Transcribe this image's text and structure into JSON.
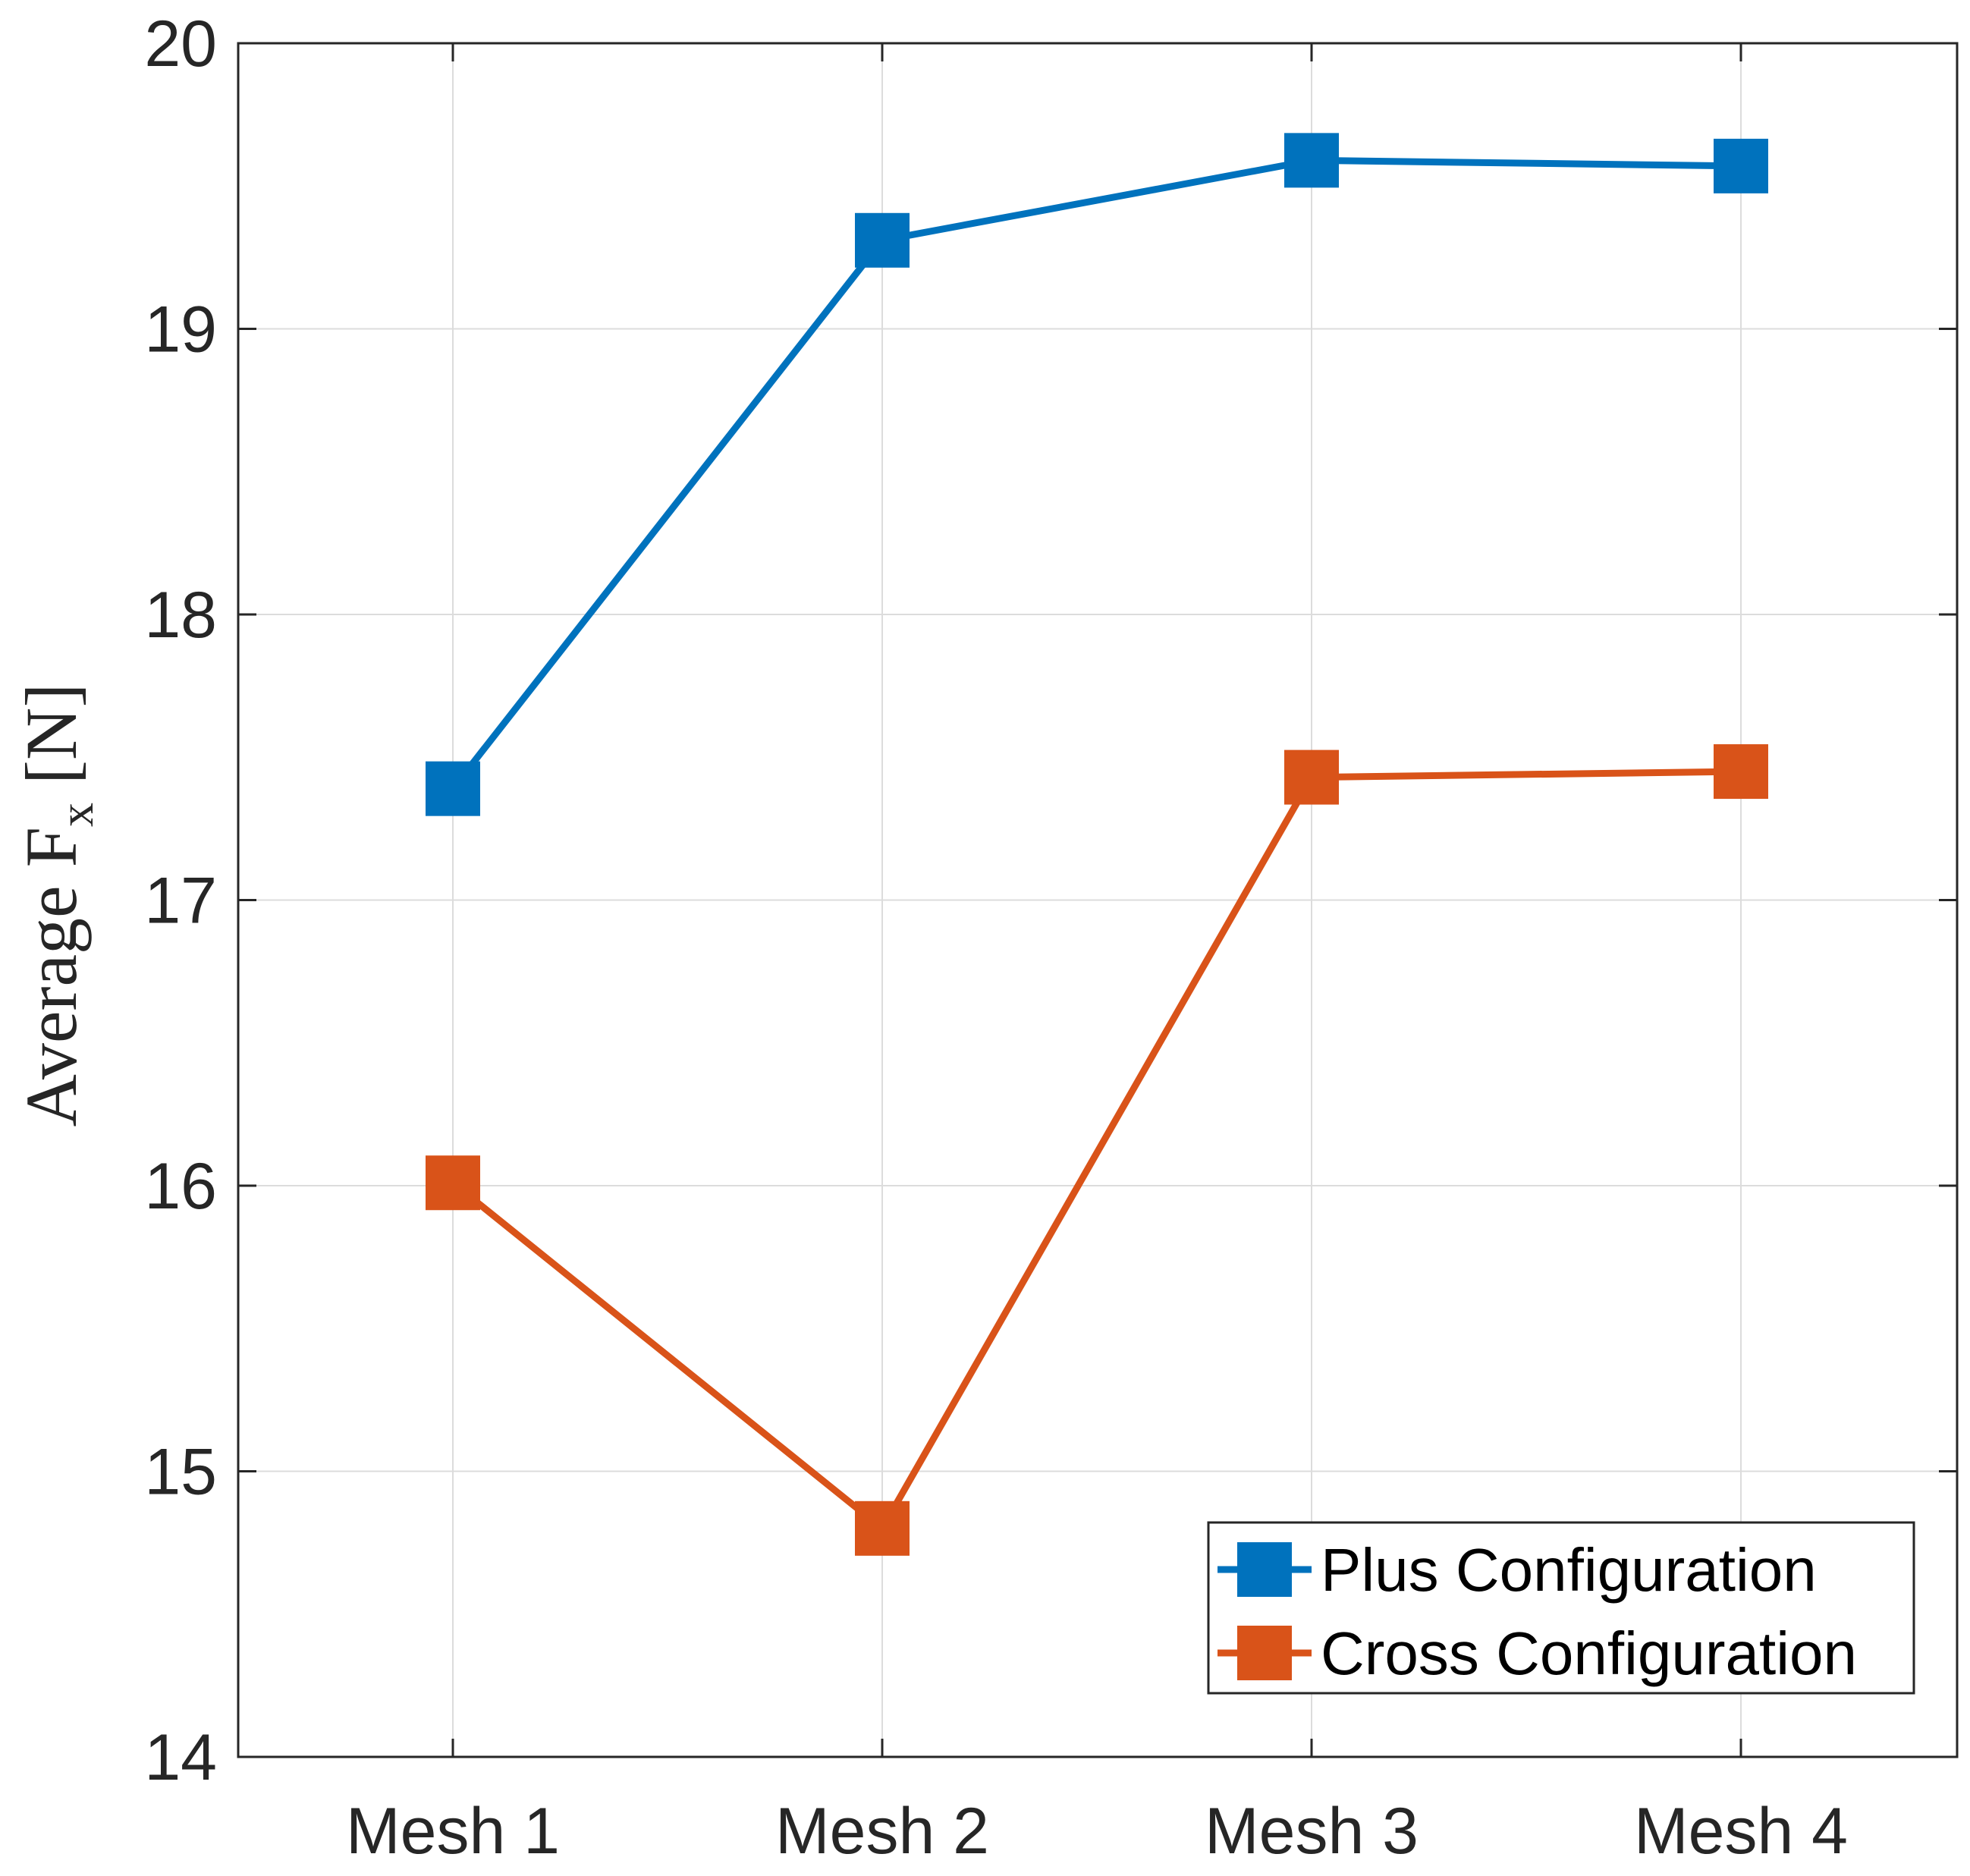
{
  "chart_data": {
    "type": "line",
    "title": "",
    "xlabel": "",
    "ylabel": "Average F",
    "ylabel_subscript": "x",
    "ylabel_unit": "[N]",
    "categories": [
      "Mesh 1",
      "Mesh 2",
      "Mesh 3",
      "Mesh 4"
    ],
    "ylim": [
      14,
      20
    ],
    "yticks": [
      "14",
      "15",
      "16",
      "17",
      "18",
      "19",
      "20"
    ],
    "grid": true,
    "legend_position": "bottom-right",
    "series": [
      {
        "name": "Plus Configuration",
        "color": "#0072BD",
        "marker": "square",
        "values": [
          17.39,
          19.31,
          19.59,
          19.57
        ]
      },
      {
        "name": "Cross Configuration",
        "color": "#D95319",
        "marker": "square",
        "values": [
          16.01,
          14.8,
          17.43,
          17.45
        ]
      }
    ]
  }
}
